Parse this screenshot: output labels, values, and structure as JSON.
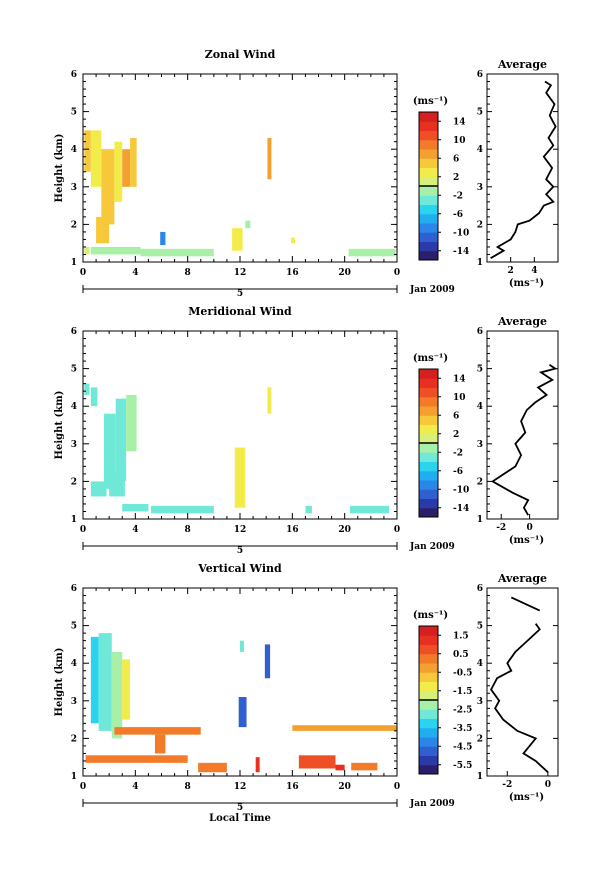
{
  "chart_data": [
    {
      "id": "zonal",
      "type": "heatmap",
      "title": "Zonal Wind",
      "ylabel": "Height (km)",
      "xticks": [
        "0",
        "4",
        "8",
        "12",
        "16",
        "20",
        "0"
      ],
      "yticks": [
        "1",
        "2",
        "3",
        "4",
        "5",
        "6"
      ],
      "xlim": [
        0,
        24
      ],
      "ylim": [
        1,
        6
      ],
      "date_marker": "5",
      "date_label": "Jan 2009",
      "colorbar": {
        "unit_label": "(ms⁻¹)",
        "tick_labels": [
          "14",
          "10",
          "6",
          "2",
          "-2",
          "-6",
          "-10",
          "-14"
        ],
        "range": [
          -16,
          16
        ],
        "colors": [
          "#2b1f6b",
          "#2a3aa8",
          "#2f5fd0",
          "#2a86e8",
          "#20aef0",
          "#2ad4ef",
          "#6fe8d8",
          "#a8f0a8",
          "#d6f07a",
          "#f2ec4a",
          "#f6c83a",
          "#f4a030",
          "#f27a28",
          "#ee4f25",
          "#e83020",
          "#d4201e"
        ]
      },
      "cells": [
        {
          "x0": 0.1,
          "x1": 0.6,
          "y0": 3.4,
          "y1": 4.5,
          "v": 4
        },
        {
          "x0": 0.6,
          "x1": 1.4,
          "y0": 3.0,
          "y1": 4.5,
          "v": 3
        },
        {
          "x0": 1.4,
          "x1": 2.4,
          "y0": 2.0,
          "y1": 4.0,
          "v": 5
        },
        {
          "x0": 2.4,
          "x1": 3.0,
          "y0": 2.6,
          "y1": 4.2,
          "v": 2
        },
        {
          "x0": 3.0,
          "x1": 3.6,
          "y0": 3.0,
          "y1": 4.0,
          "v": 6
        },
        {
          "x0": 3.6,
          "x1": 4.1,
          "y0": 3.0,
          "y1": 4.3,
          "v": 4
        },
        {
          "x0": 1.0,
          "x1": 2.0,
          "y0": 1.5,
          "y1": 2.2,
          "v": 4
        },
        {
          "x0": 0.1,
          "x1": 0.5,
          "y0": 1.2,
          "y1": 1.4,
          "v": 0
        },
        {
          "x0": 0.6,
          "x1": 4.4,
          "y0": 1.2,
          "y1": 1.4,
          "v": -1
        },
        {
          "x0": 4.4,
          "x1": 10.0,
          "y0": 1.15,
          "y1": 1.35,
          "v": -2
        },
        {
          "x0": 5.9,
          "x1": 6.3,
          "y0": 1.45,
          "y1": 1.8,
          "v": -10
        },
        {
          "x0": 11.4,
          "x1": 12.2,
          "y0": 1.3,
          "y1": 1.9,
          "v": 3
        },
        {
          "x0": 12.4,
          "x1": 12.8,
          "y0": 1.9,
          "y1": 2.1,
          "v": -1
        },
        {
          "x0": 14.1,
          "x1": 14.4,
          "y0": 3.2,
          "y1": 4.3,
          "v": 7
        },
        {
          "x0": 15.9,
          "x1": 16.2,
          "y0": 1.5,
          "y1": 1.65,
          "v": 2
        },
        {
          "x0": 20.3,
          "x1": 23.9,
          "y0": 1.15,
          "y1": 1.35,
          "v": -1
        }
      ],
      "profile": {
        "title": "Average",
        "xlabel": "(ms⁻¹)",
        "xticks": [
          "2",
          "4"
        ],
        "xlim": [
          0,
          6
        ],
        "yticks": [
          "1",
          "2",
          "3",
          "4",
          "5",
          "6"
        ],
        "ylim": [
          1,
          6
        ],
        "points": [
          {
            "x": 0.3,
            "y": 1.1
          },
          {
            "x": 1.4,
            "y": 1.3
          },
          {
            "x": 0.9,
            "y": 1.4
          },
          {
            "x": 2.0,
            "y": 1.6
          },
          {
            "x": 2.4,
            "y": 1.8
          },
          {
            "x": 2.6,
            "y": 2.0
          },
          {
            "x": 3.6,
            "y": 2.1
          },
          {
            "x": 4.4,
            "y": 2.3
          },
          {
            "x": 4.8,
            "y": 2.5
          },
          {
            "x": 5.6,
            "y": 2.6
          },
          {
            "x": 5.0,
            "y": 2.8
          },
          {
            "x": 5.6,
            "y": 3.0
          },
          {
            "x": 5.0,
            "y": 3.2
          },
          {
            "x": 5.5,
            "y": 3.5
          },
          {
            "x": 4.8,
            "y": 3.8
          },
          {
            "x": 5.6,
            "y": 4.1
          },
          {
            "x": 5.2,
            "y": 4.3
          },
          {
            "x": 5.8,
            "y": 4.6
          },
          {
            "x": 5.3,
            "y": 4.9
          },
          {
            "x": 5.7,
            "y": 5.2
          },
          {
            "x": 5.0,
            "y": 5.5
          },
          {
            "x": 5.4,
            "y": 5.7
          },
          {
            "x": 4.9,
            "y": 5.8
          }
        ]
      }
    },
    {
      "id": "meridional",
      "type": "heatmap",
      "title": "Meridional Wind",
      "ylabel": "Height (km)",
      "xticks": [
        "0",
        "4",
        "8",
        "12",
        "16",
        "20",
        "0"
      ],
      "yticks": [
        "1",
        "2",
        "3",
        "4",
        "5",
        "6"
      ],
      "xlim": [
        0,
        24
      ],
      "ylim": [
        1,
        6
      ],
      "date_marker": "5",
      "date_label": "Jan 2009",
      "colorbar": {
        "unit_label": "(ms⁻¹)",
        "tick_labels": [
          "14",
          "10",
          "6",
          "2",
          "-2",
          "-6",
          "-10",
          "-14"
        ],
        "range": [
          -16,
          16
        ],
        "colors": [
          "#2b1f6b",
          "#2a3aa8",
          "#2f5fd0",
          "#2a86e8",
          "#20aef0",
          "#2ad4ef",
          "#6fe8d8",
          "#a8f0a8",
          "#d6f07a",
          "#f2ec4a",
          "#f6c83a",
          "#f4a030",
          "#f27a28",
          "#ee4f25",
          "#e83020",
          "#d4201e"
        ]
      },
      "cells": [
        {
          "x0": 0.1,
          "x1": 0.5,
          "y0": 4.3,
          "y1": 4.6,
          "v": -3
        },
        {
          "x0": 0.6,
          "x1": 1.1,
          "y0": 4.0,
          "y1": 4.5,
          "v": -4
        },
        {
          "x0": 1.6,
          "x1": 2.5,
          "y0": 1.8,
          "y1": 3.8,
          "v": -3
        },
        {
          "x0": 2.5,
          "x1": 3.3,
          "y0": 2.0,
          "y1": 4.2,
          "v": -4
        },
        {
          "x0": 3.3,
          "x1": 4.1,
          "y0": 2.8,
          "y1": 4.3,
          "v": -2
        },
        {
          "x0": 0.6,
          "x1": 1.8,
          "y0": 1.6,
          "y1": 2.0,
          "v": -3
        },
        {
          "x0": 2.0,
          "x1": 3.2,
          "y0": 1.6,
          "y1": 2.2,
          "v": -4
        },
        {
          "x0": 3.0,
          "x1": 5.0,
          "y0": 1.2,
          "y1": 1.4,
          "v": -3
        },
        {
          "x0": 5.2,
          "x1": 10.0,
          "y0": 1.15,
          "y1": 1.35,
          "v": -4
        },
        {
          "x0": 11.6,
          "x1": 12.4,
          "y0": 1.3,
          "y1": 2.9,
          "v": 3
        },
        {
          "x0": 14.1,
          "x1": 14.4,
          "y0": 3.8,
          "y1": 4.5,
          "v": 2
        },
        {
          "x0": 17.0,
          "x1": 17.5,
          "y0": 1.15,
          "y1": 1.35,
          "v": -3
        },
        {
          "x0": 20.4,
          "x1": 23.4,
          "y0": 1.15,
          "y1": 1.35,
          "v": -4
        }
      ],
      "profile": {
        "title": "Average",
        "xlabel": "(ms⁻¹)",
        "xticks": [
          "-2",
          "0"
        ],
        "xlim": [
          -3,
          2
        ],
        "yticks": [
          "1",
          "2",
          "3",
          "4",
          "5",
          "6"
        ],
        "ylim": [
          1,
          6
        ],
        "points": [
          {
            "x": -0.1,
            "y": 1.1
          },
          {
            "x": -0.4,
            "y": 1.3
          },
          {
            "x": -0.1,
            "y": 1.5
          },
          {
            "x": -1.2,
            "y": 1.7
          },
          {
            "x": -2.6,
            "y": 2.0
          },
          {
            "x": -1.8,
            "y": 2.2
          },
          {
            "x": -1.0,
            "y": 2.4
          },
          {
            "x": -0.6,
            "y": 2.7
          },
          {
            "x": -1.0,
            "y": 3.0
          },
          {
            "x": -0.3,
            "y": 3.3
          },
          {
            "x": -0.6,
            "y": 3.6
          },
          {
            "x": -0.2,
            "y": 3.9
          },
          {
            "x": 0.4,
            "y": 4.1
          },
          {
            "x": 1.2,
            "y": 4.3
          },
          {
            "x": 0.6,
            "y": 4.5
          },
          {
            "x": 1.6,
            "y": 4.7
          },
          {
            "x": 0.8,
            "y": 4.9
          },
          {
            "x": 1.8,
            "y": 5.0
          },
          {
            "x": 1.4,
            "y": 5.1
          }
        ]
      }
    },
    {
      "id": "vertical",
      "type": "heatmap",
      "title": "Vertical Wind",
      "ylabel": "Height (km)",
      "xlabel": "Local Time",
      "xticks": [
        "0",
        "4",
        "8",
        "12",
        "16",
        "20",
        "0"
      ],
      "yticks": [
        "1",
        "2",
        "3",
        "4",
        "5",
        "6"
      ],
      "xlim": [
        0,
        24
      ],
      "ylim": [
        1,
        6
      ],
      "date_marker": "5",
      "date_label": "Jan 2009",
      "colorbar": {
        "unit_label": "(ms⁻¹)",
        "tick_labels": [
          "1.5",
          "0.5",
          "-0.5",
          "-1.5",
          "-2.5",
          "-3.5",
          "-4.5",
          "-5.5"
        ],
        "range": [
          -6,
          2
        ],
        "colors": [
          "#2b1f6b",
          "#2a3aa8",
          "#2f5fd0",
          "#2a86e8",
          "#20aef0",
          "#2ad4ef",
          "#6fe8d8",
          "#a8f0a8",
          "#d6f07a",
          "#f2ec4a",
          "#f6c83a",
          "#f4a030",
          "#f27a28",
          "#ee4f25",
          "#e83020",
          "#d4201e"
        ]
      },
      "cells": [
        {
          "x0": 0.6,
          "x1": 1.2,
          "y0": 2.4,
          "y1": 4.7,
          "v": -3.5
        },
        {
          "x0": 1.2,
          "x1": 2.2,
          "y0": 2.2,
          "y1": 4.8,
          "v": -3.0
        },
        {
          "x0": 2.2,
          "x1": 3.0,
          "y0": 2.0,
          "y1": 4.3,
          "v": -2.5
        },
        {
          "x0": 3.0,
          "x1": 3.6,
          "y0": 2.5,
          "y1": 4.1,
          "v": -1.5
        },
        {
          "x0": 2.4,
          "x1": 9.0,
          "y0": 2.1,
          "y1": 2.3,
          "v": 0.3
        },
        {
          "x0": 5.5,
          "x1": 6.3,
          "y0": 1.6,
          "y1": 2.1,
          "v": 0.0
        },
        {
          "x0": 0.2,
          "x1": 8.0,
          "y0": 1.35,
          "y1": 1.55,
          "v": 0.4
        },
        {
          "x0": 8.8,
          "x1": 11.0,
          "y0": 1.1,
          "y1": 1.35,
          "v": 0.2
        },
        {
          "x0": 11.9,
          "x1": 12.5,
          "y0": 2.3,
          "y1": 3.1,
          "v": -5.0
        },
        {
          "x0": 12.0,
          "x1": 12.3,
          "y0": 4.3,
          "y1": 4.6,
          "v": -3.0
        },
        {
          "x0": 13.9,
          "x1": 14.3,
          "y0": 3.6,
          "y1": 4.5,
          "v": -5.0
        },
        {
          "x0": 13.2,
          "x1": 13.5,
          "y0": 1.1,
          "y1": 1.5,
          "v": 1.2
        },
        {
          "x0": 16.5,
          "x1": 19.3,
          "y0": 1.2,
          "y1": 1.55,
          "v": 0.9
        },
        {
          "x0": 19.3,
          "x1": 20.0,
          "y0": 1.15,
          "y1": 1.3,
          "v": 1.0
        },
        {
          "x0": 20.5,
          "x1": 22.5,
          "y0": 1.15,
          "y1": 1.35,
          "v": 0.3
        },
        {
          "x0": 16.0,
          "x1": 24.0,
          "y0": 2.2,
          "y1": 2.35,
          "v": -0.5
        }
      ],
      "profile": {
        "title": "Average",
        "xlabel": "(ms⁻¹)",
        "xticks": [
          "-2",
          "0"
        ],
        "xlim": [
          -3,
          0.5
        ],
        "yticks": [
          "1",
          "2",
          "3",
          "4",
          "5",
          "6"
        ],
        "ylim": [
          1,
          6
        ],
        "points": [
          {
            "x": 0.0,
            "y": 1.1
          },
          {
            "x": -0.6,
            "y": 1.4
          },
          {
            "x": -1.2,
            "y": 1.6
          },
          {
            "x": -0.9,
            "y": 1.8
          },
          {
            "x": -0.6,
            "y": 2.0
          },
          {
            "x": -1.5,
            "y": 2.2
          },
          {
            "x": -2.2,
            "y": 2.5
          },
          {
            "x": -2.6,
            "y": 2.8
          },
          {
            "x": -2.4,
            "y": 3.0
          },
          {
            "x": -2.8,
            "y": 3.3
          },
          {
            "x": -2.5,
            "y": 3.6
          },
          {
            "x": -1.8,
            "y": 3.8
          },
          {
            "x": -2.0,
            "y": 4.0
          },
          {
            "x": -1.6,
            "y": 4.3
          },
          {
            "x": -1.0,
            "y": 4.6
          },
          {
            "x": -0.4,
            "y": 4.9
          },
          {
            "x": -0.6,
            "y": 5.05
          }
        ],
        "extra_segment": [
          {
            "x": -1.8,
            "y": 5.75
          },
          {
            "x": -0.4,
            "y": 5.4
          }
        ]
      }
    }
  ]
}
